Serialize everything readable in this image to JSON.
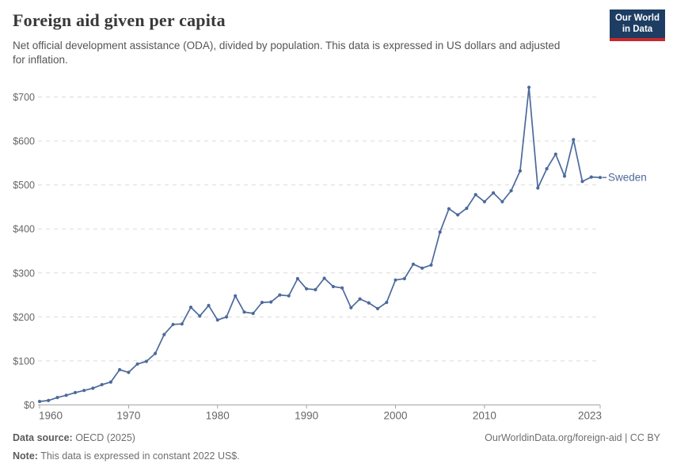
{
  "header": {
    "title": "Foreign aid given per capita",
    "subtitle": "Net official development assistance (ODA), divided by population. This data is expressed in US dollars and adjusted for inflation.",
    "logo_line1": "Our World",
    "logo_line2": "in Data",
    "logo_bg_color": "#1d3d63",
    "logo_accent_color": "#c5292e"
  },
  "chart_data": {
    "type": "line",
    "title": "Foreign aid given per capita",
    "xlabel": "",
    "ylabel": "",
    "xlim": [
      1960,
      2023
    ],
    "ylim": [
      0,
      700
    ],
    "xticks": [
      1960,
      1970,
      1980,
      1990,
      2000,
      2010,
      2023
    ],
    "yticks": [
      0,
      100,
      200,
      300,
      400,
      500,
      600,
      700
    ],
    "ytick_prefix": "$",
    "grid": true,
    "gridline_color": "#dadada",
    "axis_color": "#a5a5a5",
    "tick_label_color": "#666666",
    "legend_position": "end-of-line",
    "x": [
      1960,
      1961,
      1962,
      1963,
      1964,
      1965,
      1966,
      1967,
      1968,
      1969,
      1970,
      1971,
      1972,
      1973,
      1974,
      1975,
      1976,
      1977,
      1978,
      1979,
      1980,
      1981,
      1982,
      1983,
      1984,
      1985,
      1986,
      1987,
      1988,
      1989,
      1990,
      1991,
      1992,
      1993,
      1994,
      1995,
      1996,
      1997,
      1998,
      1999,
      2000,
      2001,
      2002,
      2003,
      2004,
      2005,
      2006,
      2007,
      2008,
      2009,
      2010,
      2011,
      2012,
      2013,
      2014,
      2015,
      2016,
      2017,
      2018,
      2019,
      2020,
      2021,
      2022,
      2023
    ],
    "series": [
      {
        "name": "Sweden",
        "color": "#4c6a9c",
        "values": [
          8,
          10,
          17,
          22,
          28,
          33,
          38,
          46,
          52,
          80,
          74,
          93,
          99,
          117,
          160,
          183,
          184,
          222,
          202,
          226,
          193,
          200,
          248,
          211,
          208,
          233,
          234,
          250,
          248,
          287,
          264,
          262,
          288,
          269,
          266,
          221,
          241,
          232,
          219,
          233,
          284,
          287,
          320,
          311,
          318,
          393,
          446,
          432,
          447,
          478,
          462,
          482,
          462,
          487,
          532,
          722,
          493,
          537,
          570,
          520,
          603,
          508,
          518,
          517
        ]
      }
    ]
  },
  "footer": {
    "source_label": "Data source:",
    "source_value": " OECD (2025)",
    "note_label": "Note:",
    "note_value": " This data is expressed in constant 2022 US$.",
    "link": "OurWorldinData.org/foreign-aid | CC BY"
  }
}
